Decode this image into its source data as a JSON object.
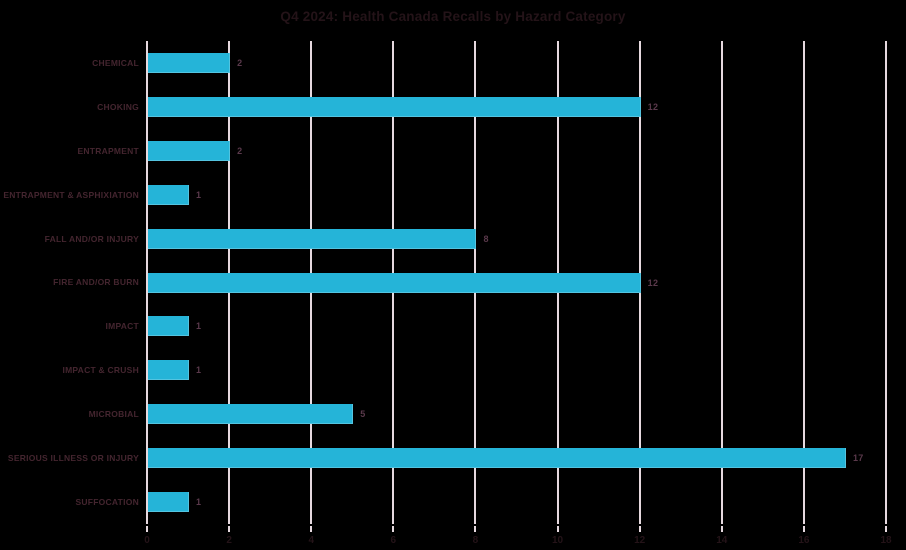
{
  "colors": {
    "background": "#000000",
    "bar": "#25b4d8",
    "grid": "#e6d9df",
    "title_text": "#241318",
    "category_text": "#44252f",
    "value_text": "#5a394b",
    "tick_text": "#241318"
  },
  "chart_data": {
    "type": "bar",
    "orientation": "horizontal",
    "title": "Q4 2024: Health Canada Recalls by Hazard Category",
    "categories": [
      "CHEMICAL",
      "CHOKING",
      "ENTRAPMENT",
      "ENTRAPMENT & ASPHIXIATION",
      "FALL AND/OR INJURY",
      "FIRE AND/OR BURN",
      "IMPACT",
      "IMPACT & CRUSH",
      "MICROBIAL",
      "SERIOUS ILLNESS OR INJURY",
      "SUFFOCATION"
    ],
    "values": [
      2,
      12,
      2,
      1,
      8,
      12,
      1,
      1,
      5,
      17,
      1
    ],
    "value_labels": [
      "2",
      "12",
      "2",
      "1",
      "8",
      "12",
      "1",
      "1",
      "5",
      "17",
      "1"
    ],
    "xlabel": "",
    "ylabel": "",
    "xlim": [
      0,
      18
    ],
    "xticks": [
      0,
      2,
      4,
      6,
      8,
      10,
      12,
      14,
      16,
      18
    ],
    "grid": true,
    "legend": false,
    "value_labels_shown": true
  }
}
